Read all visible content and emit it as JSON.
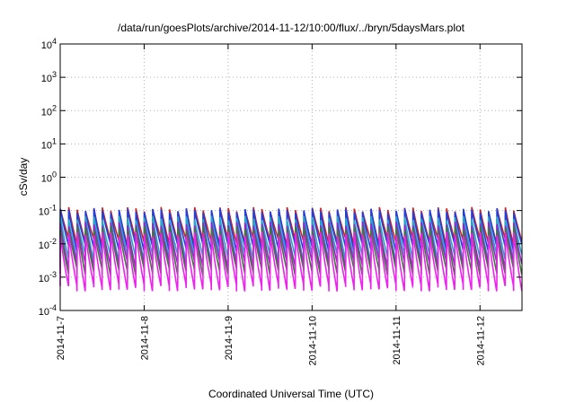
{
  "chart_data": {
    "type": "line",
    "title": "/data/run/goesPlots/archive/2014-11-12/10:00/flux/../bryn/5daysMars.plot",
    "xlabel": "Coordinated Universal Time (UTC)",
    "ylabel": "cSv/day",
    "yscale": "log",
    "ylim_exponents": [
      -4,
      4
    ],
    "y_tick_labels": [
      {
        "base": "10",
        "exp": "-4"
      },
      {
        "base": "10",
        "exp": "-3"
      },
      {
        "base": "10",
        "exp": "-2"
      },
      {
        "base": "10",
        "exp": "-1"
      },
      {
        "base": "10",
        "exp": "0"
      },
      {
        "base": "10",
        "exp": "1"
      },
      {
        "base": "10",
        "exp": "2"
      },
      {
        "base": "10",
        "exp": "3"
      },
      {
        "base": "10",
        "exp": "4"
      }
    ],
    "x_range_days": [
      "2014-11-7",
      "2014-11-12 ~12:00"
    ],
    "x_tick_labels": [
      "2014-11-7",
      "2014-11-8",
      "2014-11-9",
      "2014-11-10",
      "2014-11-11",
      "2014-11-12"
    ],
    "grid": true,
    "pattern": {
      "description": "repeating sawtooth: ~10 spikes per day, sharp rise then decay",
      "peaks_per_day": 10,
      "days_with_gaps": true
    },
    "series": [
      {
        "color": "#cc2222",
        "peak": 0.11,
        "trough": 0.012
      },
      {
        "color": "#1f3fe0",
        "peak": 0.1,
        "trough": 0.008
      },
      {
        "color": "#22a8c8",
        "peak": 0.06,
        "trough": 0.004
      },
      {
        "color": "#9922cc",
        "peak": 0.04,
        "trough": 0.0025
      },
      {
        "color": "#3a7a3a",
        "peak": 0.03,
        "trough": 0.0015
      },
      {
        "color": "#ee22ee",
        "peak": 0.02,
        "trough": 0.0005
      }
    ]
  }
}
